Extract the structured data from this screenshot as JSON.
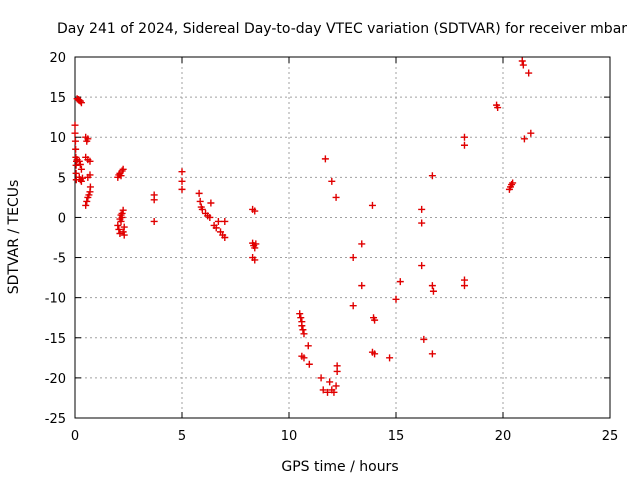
{
  "chart_data": {
    "type": "scatter",
    "title": "Day 241 of 2024, Sidereal Day-to-day VTEC variation (SDTVAR) for receiver mbar",
    "xlabel": "GPS time / hours",
    "ylabel": "SDTVAR / TECUs",
    "xlim": [
      0,
      25
    ],
    "ylim": [
      -25,
      20
    ],
    "xticks": [
      0,
      5,
      10,
      15,
      20,
      25
    ],
    "yticks": [
      -25,
      -20,
      -15,
      -10,
      -5,
      0,
      5,
      10,
      15,
      20
    ],
    "xtick_labels": [
      "0",
      "5",
      "10",
      "15",
      "20",
      "25"
    ],
    "ytick_labels": [
      "-25",
      "-20",
      "-15",
      "-10",
      "-5",
      "0",
      "5",
      "10",
      "15",
      "20"
    ],
    "grid": true,
    "marker": "plus",
    "series": [
      {
        "name": "SDTVAR",
        "color": "#e00000",
        "points": [
          [
            0.0,
            11.5
          ],
          [
            0.0,
            10.5
          ],
          [
            0.02,
            9.5
          ],
          [
            0.03,
            8.5
          ],
          [
            0.04,
            7.5
          ],
          [
            0.05,
            6.5
          ],
          [
            0.05,
            5.5
          ],
          [
            0.06,
            4.7
          ],
          [
            0.07,
            7.0
          ],
          [
            0.1,
            14.8
          ],
          [
            0.15,
            14.7
          ],
          [
            0.2,
            14.6
          ],
          [
            0.25,
            14.5
          ],
          [
            0.3,
            14.3
          ],
          [
            0.1,
            7.2
          ],
          [
            0.2,
            7.0
          ],
          [
            0.25,
            6.6
          ],
          [
            0.3,
            6.0
          ],
          [
            0.2,
            5.0
          ],
          [
            0.25,
            4.7
          ],
          [
            0.3,
            4.5
          ],
          [
            0.35,
            4.9
          ],
          [
            0.5,
            10.0
          ],
          [
            0.55,
            9.5
          ],
          [
            0.6,
            9.8
          ],
          [
            0.5,
            7.5
          ],
          [
            0.6,
            7.2
          ],
          [
            0.7,
            7.0
          ],
          [
            0.5,
            1.5
          ],
          [
            0.55,
            2.0
          ],
          [
            0.6,
            2.5
          ],
          [
            0.65,
            2.8
          ],
          [
            0.7,
            3.2
          ],
          [
            0.72,
            3.8
          ],
          [
            0.6,
            5.0
          ],
          [
            0.7,
            5.3
          ],
          [
            2.0,
            -1.0
          ],
          [
            2.05,
            -1.5
          ],
          [
            2.1,
            -2.0
          ],
          [
            2.15,
            -0.5
          ],
          [
            2.2,
            0.0
          ],
          [
            2.25,
            -1.8
          ],
          [
            2.3,
            -2.2
          ],
          [
            2.1,
            -0.2
          ],
          [
            2.15,
            0.3
          ],
          [
            2.2,
            0.5
          ],
          [
            2.25,
            0.9
          ],
          [
            2.3,
            -1.2
          ],
          [
            2.0,
            5.0
          ],
          [
            2.05,
            5.3
          ],
          [
            2.1,
            5.5
          ],
          [
            2.15,
            5.2
          ],
          [
            2.2,
            5.8
          ],
          [
            2.25,
            6.0
          ],
          [
            3.7,
            2.8
          ],
          [
            3.7,
            2.2
          ],
          [
            3.7,
            -0.5
          ],
          [
            5.0,
            5.7
          ],
          [
            5.0,
            4.5
          ],
          [
            5.0,
            3.5
          ],
          [
            5.8,
            3.0
          ],
          [
            5.85,
            2.0
          ],
          [
            5.9,
            1.3
          ],
          [
            5.95,
            1.0
          ],
          [
            6.1,
            0.5
          ],
          [
            6.2,
            0.2
          ],
          [
            6.3,
            0.0
          ],
          [
            6.35,
            1.8
          ],
          [
            6.5,
            -1.0
          ],
          [
            6.6,
            -1.3
          ],
          [
            6.7,
            -0.5
          ],
          [
            6.8,
            -1.8
          ],
          [
            6.9,
            -2.2
          ],
          [
            7.0,
            -2.5
          ],
          [
            7.0,
            -0.5
          ],
          [
            8.3,
            1.0
          ],
          [
            8.4,
            0.8
          ],
          [
            8.3,
            -3.2
          ],
          [
            8.35,
            -3.5
          ],
          [
            8.4,
            -3.8
          ],
          [
            8.45,
            -3.3
          ],
          [
            8.3,
            -5.0
          ],
          [
            8.4,
            -5.3
          ],
          [
            10.5,
            -12.0
          ],
          [
            10.55,
            -12.5
          ],
          [
            10.6,
            -13.0
          ],
          [
            10.6,
            -13.5
          ],
          [
            10.65,
            -14.0
          ],
          [
            10.7,
            -14.5
          ],
          [
            10.6,
            -17.3
          ],
          [
            10.7,
            -17.5
          ],
          [
            10.9,
            -16.0
          ],
          [
            10.95,
            -18.3
          ],
          [
            11.5,
            -20.0
          ],
          [
            11.6,
            -21.5
          ],
          [
            11.8,
            -21.8
          ],
          [
            11.9,
            -20.5
          ],
          [
            12.0,
            -21.5
          ],
          [
            12.1,
            -21.8
          ],
          [
            12.2,
            -21.0
          ],
          [
            12.25,
            -19.2
          ],
          [
            12.25,
            -18.5
          ],
          [
            11.7,
            7.3
          ],
          [
            12.0,
            4.5
          ],
          [
            12.2,
            2.5
          ],
          [
            13.0,
            -5.0
          ],
          [
            13.0,
            -11.0
          ],
          [
            13.4,
            -8.5
          ],
          [
            13.4,
            -3.3
          ],
          [
            13.9,
            1.5
          ],
          [
            13.95,
            -12.5
          ],
          [
            14.0,
            -12.8
          ],
          [
            13.9,
            -16.8
          ],
          [
            14.0,
            -17.0
          ],
          [
            14.7,
            -17.5
          ],
          [
            15.0,
            -10.2
          ],
          [
            15.2,
            -8.0
          ],
          [
            16.2,
            1.0
          ],
          [
            16.2,
            -0.7
          ],
          [
            16.2,
            -6.0
          ],
          [
            16.3,
            -15.2
          ],
          [
            16.7,
            5.2
          ],
          [
            16.7,
            -8.5
          ],
          [
            16.75,
            -9.2
          ],
          [
            16.7,
            -17.0
          ],
          [
            18.2,
            10.0
          ],
          [
            18.2,
            9.0
          ],
          [
            18.2,
            -8.5
          ],
          [
            18.2,
            -7.8
          ],
          [
            19.7,
            14.0
          ],
          [
            19.75,
            13.7
          ],
          [
            20.3,
            3.5
          ],
          [
            20.35,
            3.8
          ],
          [
            20.4,
            4.1
          ],
          [
            20.45,
            4.3
          ],
          [
            20.9,
            19.5
          ],
          [
            20.95,
            19.0
          ],
          [
            21.2,
            18.0
          ],
          [
            21.0,
            9.8
          ],
          [
            21.3,
            10.5
          ]
        ]
      }
    ]
  }
}
